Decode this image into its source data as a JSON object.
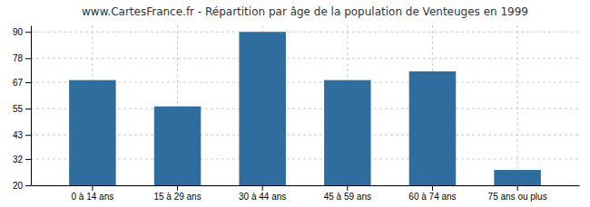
{
  "chart_data": {
    "type": "bar",
    "title": "www.CartesFrance.fr - Répartition par âge de la population de Venteuges en 1999",
    "categories": [
      "0 à 14 ans",
      "15 à 29 ans",
      "30 à 44 ans",
      "45 à 59 ans",
      "60 à 74 ans",
      "75 ans ou plus"
    ],
    "values": [
      68,
      56,
      90,
      68,
      72,
      27
    ],
    "color": "#2e6d9e",
    "ylim": [
      20,
      93
    ],
    "yticks": [
      20,
      32,
      43,
      55,
      67,
      78,
      90
    ],
    "grid": true
  }
}
